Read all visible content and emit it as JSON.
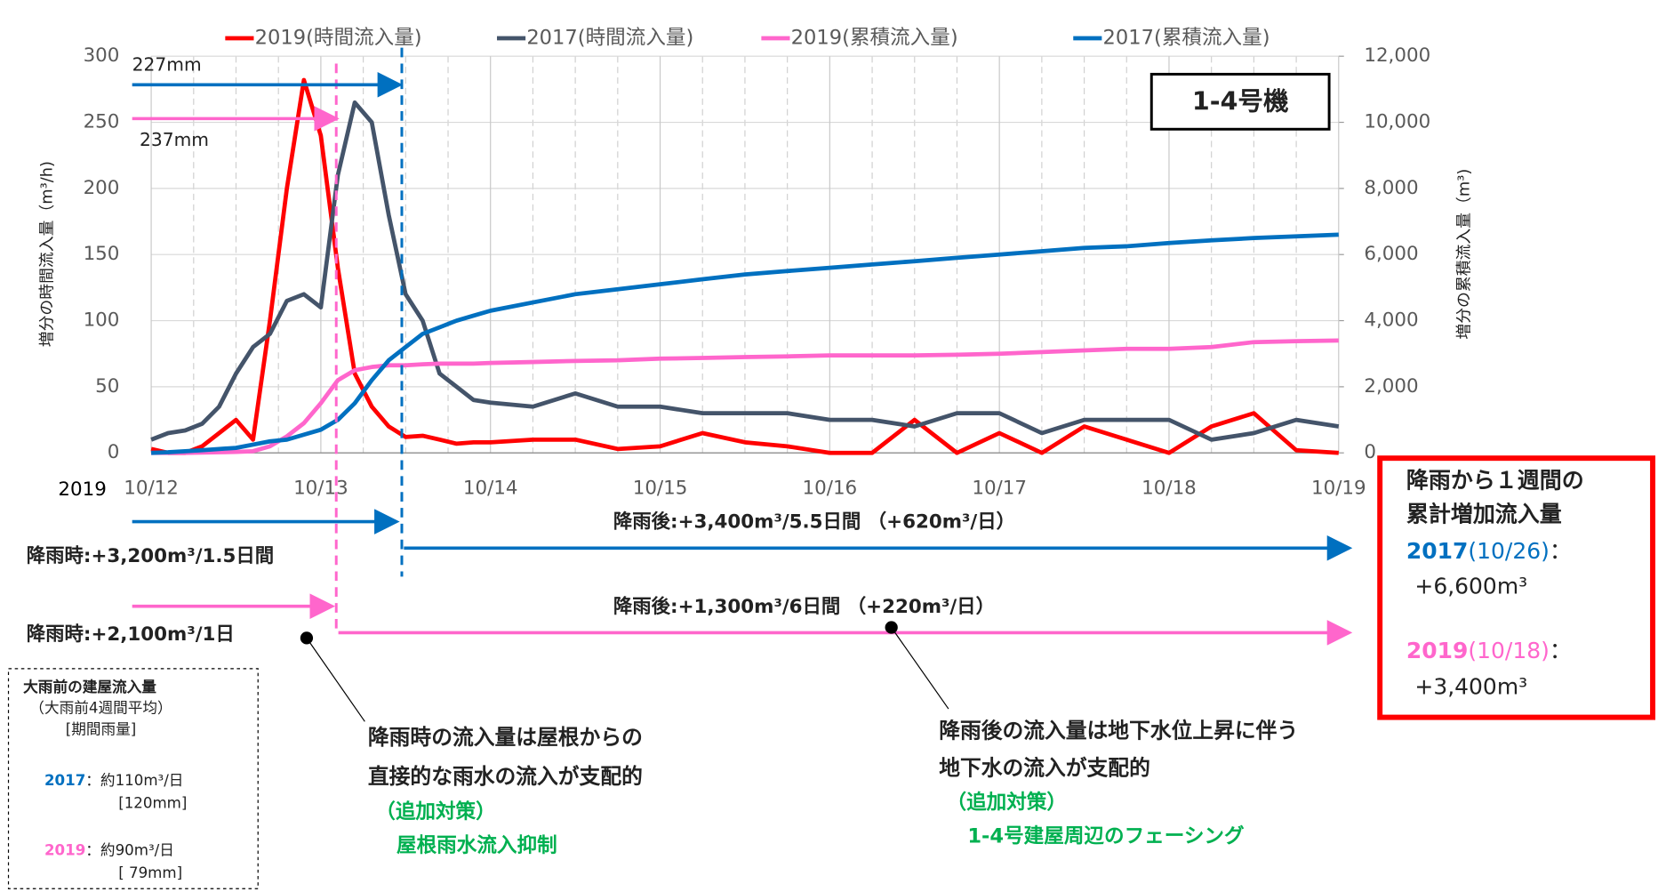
{
  "chart_data": {
    "type": "line",
    "x": [
      0,
      0.1,
      0.2,
      0.3,
      0.4,
      0.5,
      0.6,
      0.7,
      0.8,
      0.9,
      1,
      1.1,
      1.2,
      1.3,
      1.4,
      1.5,
      1.6,
      1.7,
      1.8,
      1.9,
      2,
      2.25,
      2.5,
      2.75,
      3,
      3.25,
      3.5,
      3.75,
      4,
      4.25,
      4.5,
      4.75,
      5,
      5.25,
      5.5,
      5.75,
      6,
      6.25,
      6.5,
      6.75,
      7
    ],
    "xlim": [
      0,
      7
    ],
    "xticks": [
      {
        "value": 0,
        "label": "10/12"
      },
      {
        "value": 1,
        "label": "10/13"
      },
      {
        "value": 2,
        "label": "10/14"
      },
      {
        "value": 3,
        "label": "10/15"
      },
      {
        "value": 4,
        "label": "10/16"
      },
      {
        "value": 5,
        "label": "10/17"
      },
      {
        "value": 6,
        "label": "10/18"
      },
      {
        "value": 7,
        "label": "10/19"
      }
    ],
    "x_year": "2019",
    "ylim": [
      0,
      300
    ],
    "yticks": [
      0,
      50,
      100,
      150,
      200,
      250,
      300
    ],
    "y2lim": [
      0,
      12000
    ],
    "y2ticks": [
      0,
      {
        "value": 2000,
        "label": "2,000"
      },
      {
        "value": 4000,
        "label": "4,000"
      },
      {
        "value": 6000,
        "label": "6,000"
      },
      {
        "value": 8000,
        "label": "8,000"
      },
      {
        "value": 10000,
        "label": "10,000"
      },
      {
        "value": 12000,
        "label": "12,000"
      }
    ],
    "ylabel": "増分の時間流入量（m³/h)",
    "y2label": "増分の累積流入量（m³)",
    "grid": true,
    "series": [
      {
        "name": "2019(時間流入量)",
        "color": "#ff0000",
        "values": [
          3,
          0,
          0,
          5,
          15,
          25,
          10,
          100,
          200,
          282,
          240,
          140,
          60,
          35,
          20,
          12,
          13,
          10,
          7,
          8,
          8,
          10,
          10,
          3,
          5,
          15,
          8,
          5,
          0,
          0,
          25,
          0,
          15,
          0,
          20,
          10,
          0,
          20,
          30,
          2,
          0
        ]
      },
      {
        "name": "2017(時間流入量)",
        "color": "#44546a",
        "values": [
          10,
          15,
          17,
          22,
          35,
          60,
          80,
          90,
          115,
          120,
          110,
          210,
          265,
          250,
          180,
          120,
          100,
          60,
          50,
          40,
          38,
          35,
          45,
          35,
          35,
          30,
          30,
          30,
          25,
          25,
          20,
          30,
          30,
          15,
          25,
          25,
          25,
          10,
          15,
          25,
          20
        ]
      },
      {
        "name": "2019(累積流入量)",
        "color": "#ff66cc",
        "axis": "y2",
        "values": [
          0,
          0,
          0,
          10,
          20,
          30,
          50,
          200,
          500,
          900,
          1500,
          2200,
          2500,
          2600,
          2650,
          2650,
          2680,
          2700,
          2700,
          2700,
          2720,
          2750,
          2780,
          2800,
          2850,
          2870,
          2900,
          2920,
          2950,
          2950,
          2950,
          2970,
          3000,
          3050,
          3100,
          3150,
          3150,
          3200,
          3350,
          3380,
          3400
        ]
      },
      {
        "name": "2017(累積流入量)",
        "color": "#0070c0",
        "axis": "y2",
        "values": [
          0,
          20,
          50,
          80,
          120,
          150,
          250,
          350,
          400,
          550,
          700,
          1000,
          1500,
          2200,
          2800,
          3200,
          3600,
          3800,
          4000,
          4150,
          4300,
          4550,
          4800,
          4950,
          5100,
          5250,
          5400,
          5500,
          5600,
          5700,
          5800,
          5900,
          6000,
          6100,
          6200,
          6250,
          6350,
          6430,
          6500,
          6550,
          6600
        ]
      }
    ],
    "annotations": {
      "unit_box": "1-4号機",
      "rain_2017": "227mm",
      "rain_2019": "237mm",
      "after_2017": "降雨後:+3,400m³/5.5日間 （+620m³/日）",
      "during_2017": "降雨時:+3,200m³/1.5日間",
      "after_2019": "降雨後:+1,300m³/6日間 （+220m³/日）",
      "during_2019": "降雨時:+2,100m³/1日",
      "note_left": [
        "降雨時の流入量は屋根からの",
        "直接的な雨水の流入が支配的"
      ],
      "measure_left": [
        "（追加対策）",
        "屋根雨水流入抑制"
      ],
      "note_right": [
        "降雨後の流入量は地下水位上昇に伴う",
        "地下水の流入が支配的"
      ],
      "measure_right": [
        "（追加対策）",
        "1-4号建屋周辺のフェーシング"
      ],
      "summary": {
        "title": [
          "降雨から１週間の",
          "累計増加流入量"
        ],
        "y2017": {
          "year": "2017",
          "date": "(10/26)",
          "sep": "：",
          "value": "+6,600m³"
        },
        "y2019": {
          "year": "2019",
          "date": "(10/18)",
          "sep": "：",
          "value": "+3,400m³"
        }
      },
      "baseline": {
        "title": "大雨前の建屋流入量",
        "sub": "（大雨前4週間平均）",
        "rain": "[期間雨量]",
        "y2017": {
          "year": "2017",
          "rate": "：約110m³/日",
          "rain": "[120mm]"
        },
        "y2019": {
          "year": "2019",
          "rate": "：約90m³/日",
          "rain": "[ 79mm]"
        }
      }
    }
  }
}
